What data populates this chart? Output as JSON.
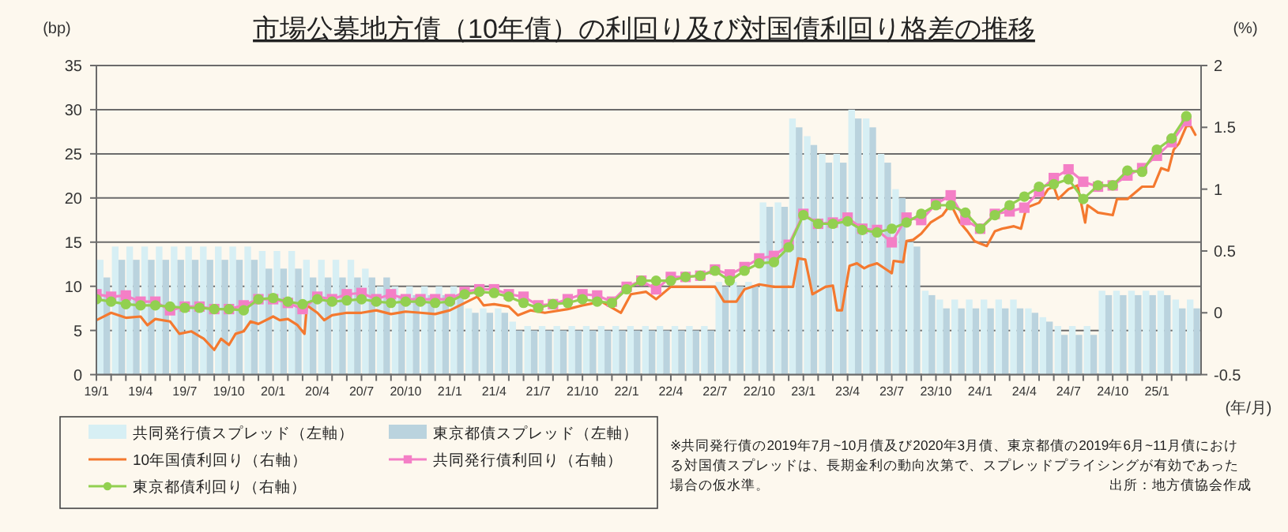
{
  "chart_data": {
    "type": "bar",
    "title": "市場公募地方債（10年債）の利回り及び対国債利回り格差の推移",
    "ylabel": "(bp)",
    "y2label": "(%)",
    "xlabel": "(年/月)",
    "annotations": [
      "※共同発行債の2019年7月~10月債及び2020年3月債、東京都債の2019年6月~11月債における対国債スプレッドは、長期金利の動向次第で、スプレッドプライシングが有効であった場合の仮水準。",
      "出所：地方債協会作成"
    ],
    "x": [
      "2019-01",
      "2019-02",
      "2019-03",
      "2019-04",
      "2019-05",
      "2019-06",
      "2019-07",
      "2019-08",
      "2019-09",
      "2019-10",
      "2019-11",
      "2019-12",
      "2020-01",
      "2020-02",
      "2020-03",
      "2020-04",
      "2020-05",
      "2020-06",
      "2020-07",
      "2020-08",
      "2020-09",
      "2020-10",
      "2020-11",
      "2020-12",
      "2021-01",
      "2021-02",
      "2021-03",
      "2021-04",
      "2021-05",
      "2021-06",
      "2021-07",
      "2021-08",
      "2021-09",
      "2021-10",
      "2021-11",
      "2021-12",
      "2022-01",
      "2022-02",
      "2022-03",
      "2022-04",
      "2022-05",
      "2022-06",
      "2022-07",
      "2022-08",
      "2022-09",
      "2022-10",
      "2022-11",
      "2022-12",
      "2023-01",
      "2023-02",
      "2023-03",
      "2023-04",
      "2023-05",
      "2023-06",
      "2023-07",
      "2023-08",
      "2023-09",
      "2023-10",
      "2023-11",
      "2023-12",
      "2024-01",
      "2024-02",
      "2024-03",
      "2024-04",
      "2024-05",
      "2024-06",
      "2024-07",
      "2024-08",
      "2024-09",
      "2024-10",
      "2024-11",
      "2024-12",
      "2025-01",
      "2025-02",
      "2025-03"
    ],
    "xlim": [
      "2019-01",
      "2025-04"
    ],
    "xticks": [
      {
        "value": "2019-01",
        "label": "19/1"
      },
      {
        "value": "2019-02",
        "label": null
      },
      {
        "value": "2019-03",
        "label": null
      },
      {
        "value": "2019-04",
        "label": "19/4"
      },
      {
        "value": "2019-05",
        "label": null
      },
      {
        "value": "2019-06",
        "label": null
      },
      {
        "value": "2019-07",
        "label": "19/7"
      },
      {
        "value": "2019-08",
        "label": null
      },
      {
        "value": "2019-09",
        "label": null
      },
      {
        "value": "2019-10",
        "label": "19/10"
      },
      {
        "value": "2019-11",
        "label": null
      },
      {
        "value": "2019-12",
        "label": null
      },
      {
        "value": "2020-01",
        "label": "20/1"
      },
      {
        "value": "2020-02",
        "label": null
      },
      {
        "value": "2020-03",
        "label": null
      },
      {
        "value": "2020-04",
        "label": "20/4"
      },
      {
        "value": "2020-05",
        "label": null
      },
      {
        "value": "2020-06",
        "label": null
      },
      {
        "value": "2020-07",
        "label": "20/7"
      },
      {
        "value": "2020-08",
        "label": null
      },
      {
        "value": "2020-09",
        "label": null
      },
      {
        "value": "2020-10",
        "label": "20/10"
      },
      {
        "value": "2020-11",
        "label": null
      },
      {
        "value": "2020-12",
        "label": null
      },
      {
        "value": "2021-01",
        "label": "21/1"
      },
      {
        "value": "2021-02",
        "label": null
      },
      {
        "value": "2021-03",
        "label": null
      },
      {
        "value": "2021-04",
        "label": "21/4"
      },
      {
        "value": "2021-05",
        "label": null
      },
      {
        "value": "2021-06",
        "label": null
      },
      {
        "value": "2021-07",
        "label": "21/7"
      },
      {
        "value": "2021-08",
        "label": null
      },
      {
        "value": "2021-09",
        "label": null
      },
      {
        "value": "2021-10",
        "label": "21/10"
      },
      {
        "value": "2021-11",
        "label": null
      },
      {
        "value": "2021-12",
        "label": null
      },
      {
        "value": "2022-01",
        "label": "22/1"
      },
      {
        "value": "2022-02",
        "label": null
      },
      {
        "value": "2022-03",
        "label": null
      },
      {
        "value": "2022-04",
        "label": "22/4"
      },
      {
        "value": "2022-05",
        "label": null
      },
      {
        "value": "2022-06",
        "label": null
      },
      {
        "value": "2022-07",
        "label": "22/7"
      },
      {
        "value": "2022-08",
        "label": null
      },
      {
        "value": "2022-09",
        "label": null
      },
      {
        "value": "2022-10",
        "label": "22/10"
      },
      {
        "value": "2022-11",
        "label": null
      },
      {
        "value": "2022-12",
        "label": null
      },
      {
        "value": "2023-01",
        "label": "23/1"
      },
      {
        "value": "2023-02",
        "label": null
      },
      {
        "value": "2023-03",
        "label": null
      },
      {
        "value": "2023-04",
        "label": "23/4"
      },
      {
        "value": "2023-05",
        "label": null
      },
      {
        "value": "2023-06",
        "label": null
      },
      {
        "value": "2023-07",
        "label": "23/7"
      },
      {
        "value": "2023-08",
        "label": null
      },
      {
        "value": "2023-09",
        "label": null
      },
      {
        "value": "2023-10",
        "label": "23/10"
      },
      {
        "value": "2023-11",
        "label": null
      },
      {
        "value": "2023-12",
        "label": null
      },
      {
        "value": "2024-01",
        "label": "24/1"
      },
      {
        "value": "2024-02",
        "label": null
      },
      {
        "value": "2024-03",
        "label": null
      },
      {
        "value": "2024-04",
        "label": "24/4"
      },
      {
        "value": "2024-05",
        "label": null
      },
      {
        "value": "2024-06",
        "label": null
      },
      {
        "value": "2024-07",
        "label": "24/7"
      },
      {
        "value": "2024-08",
        "label": null
      },
      {
        "value": "2024-09",
        "label": null
      },
      {
        "value": "2024-10",
        "label": "24/10"
      },
      {
        "value": "2024-11",
        "label": null
      },
      {
        "value": "2024-12",
        "label": null
      },
      {
        "value": "2025-01",
        "label": "25/1"
      },
      {
        "value": "2025-02",
        "label": null
      },
      {
        "value": "2025-03",
        "label": null
      }
    ],
    "ylim": [
      0,
      35
    ],
    "yticks": [
      0,
      5,
      10,
      15,
      20,
      25,
      30,
      35
    ],
    "y2lim": [
      -0.5,
      2
    ],
    "y2ticks": [
      -0.5,
      0,
      0.5,
      1,
      1.5,
      2
    ],
    "grid": "y",
    "legend": "bottom",
    "series": [
      {
        "name": "共同発行債スプレッド（左軸）",
        "color": "#d7eff4",
        "x": [
          "2019-01-16",
          "2019-02-15",
          "2019-03-16",
          "2019-04-16",
          "2019-05-16",
          "2019-06-16",
          "2019-07-16",
          "2019-08-16",
          "2019-09-16",
          "2019-10-16",
          "2019-11-16",
          "2019-12-16",
          "2020-01-16",
          "2020-02-15",
          "2020-03-16",
          "2020-04-16",
          "2020-05-16",
          "2020-06-16",
          "2020-07-16",
          "2020-08-16",
          "2020-09-16",
          "2020-10-16",
          "2020-11-16",
          "2020-12-16",
          "2021-01-16",
          "2021-02-15",
          "2021-03-16",
          "2021-04-16",
          "2021-05-16",
          "2021-06-16",
          "2021-07-16",
          "2021-08-16",
          "2021-09-16",
          "2021-10-16",
          "2021-11-16",
          "2021-12-16",
          "2022-01-16",
          "2022-02-15",
          "2022-03-16",
          "2022-04-16",
          "2022-05-16",
          "2022-06-16",
          "2022-07-16",
          "2022-08-16",
          "2022-09-16",
          "2022-10-16",
          "2022-11-16",
          "2022-12-16",
          "2023-01-16",
          "2023-02-15",
          "2023-03-16",
          "2023-04-16",
          "2023-05-16",
          "2023-06-16",
          "2023-07-16",
          "2023-08-16",
          "2023-09-16",
          "2023-10-16",
          "2023-11-16",
          "2023-12-16",
          "2024-01-16",
          "2024-02-15",
          "2024-03-16",
          "2024-04-16",
          "2024-05-16",
          "2024-06-16",
          "2024-07-16",
          "2024-08-16",
          "2024-09-16",
          "2024-10-16",
          "2024-11-16",
          "2024-12-16",
          "2025-01-16",
          "2025-02-15",
          "2025-03-16"
        ],
        "values": [
          13,
          14.5,
          14.5,
          14.5,
          14.5,
          14.5,
          14.5,
          14.5,
          14.5,
          14.5,
          14.5,
          14,
          14,
          14,
          13,
          13,
          13,
          13,
          12,
          10,
          10,
          10,
          10,
          10,
          10,
          7.5,
          7.5,
          7.5,
          6,
          5.5,
          5.5,
          5.5,
          5.5,
          5.5,
          5.5,
          5.5,
          5.5,
          5.5,
          5.5,
          5.5,
          5.5,
          5.5,
          10.5,
          10.5,
          10.5,
          19.5,
          19.5,
          29,
          27,
          25,
          25,
          30,
          29,
          25,
          21,
          15,
          9.5,
          8.5,
          8.5,
          8.5,
          8.5,
          8.5,
          8.5,
          7.5,
          6.5,
          5.5,
          5.5,
          5.5,
          9.5,
          9.5,
          9.5,
          9.5,
          9.5,
          8.5,
          8.5
        ]
      },
      {
        "name": "東京都債スプレッド（左軸）",
        "color": "#bad3de",
        "x": [
          "2019-01-16",
          "2019-02-15",
          "2019-03-16",
          "2019-04-16",
          "2019-05-16",
          "2019-06-16",
          "2019-07-16",
          "2019-08-16",
          "2019-09-16",
          "2019-10-16",
          "2019-11-16",
          "2019-12-16",
          "2020-01-16",
          "2020-02-15",
          "2020-03-16",
          "2020-04-16",
          "2020-05-16",
          "2020-06-16",
          "2020-07-16",
          "2020-08-16",
          "2020-09-16",
          "2020-10-16",
          "2020-11-16",
          "2020-12-16",
          "2021-01-16",
          "2021-02-15",
          "2021-03-16",
          "2021-04-16",
          "2021-05-16",
          "2021-06-16",
          "2021-07-16",
          "2021-08-16",
          "2021-09-16",
          "2021-10-16",
          "2021-11-16",
          "2021-12-16",
          "2022-01-16",
          "2022-02-15",
          "2022-03-16",
          "2022-04-16",
          "2022-05-16",
          "2022-06-16",
          "2022-07-16",
          "2022-08-16",
          "2022-09-16",
          "2022-10-16",
          "2022-11-16",
          "2022-12-16",
          "2023-01-16",
          "2023-02-15",
          "2023-03-16",
          "2023-04-16",
          "2023-05-16",
          "2023-06-16",
          "2023-07-16",
          "2023-08-16",
          "2023-09-16",
          "2023-10-16",
          "2023-11-16",
          "2023-12-16",
          "2024-01-16",
          "2024-02-15",
          "2024-03-16",
          "2024-04-16",
          "2024-05-16",
          "2024-06-16",
          "2024-07-16",
          "2024-08-16",
          "2024-09-16",
          "2024-10-16",
          "2024-11-16",
          "2024-12-16",
          "2025-01-16",
          "2025-02-15",
          "2025-03-16"
        ],
        "values": [
          11,
          13,
          13,
          13,
          13,
          13,
          13,
          13,
          13,
          13,
          13,
          12,
          12,
          12,
          11,
          11,
          11,
          11,
          11,
          11,
          9,
          9,
          9,
          9,
          9,
          7,
          7,
          7,
          5,
          5,
          5,
          5,
          5,
          5,
          5,
          5,
          5,
          5,
          5,
          5,
          5,
          5,
          10,
          10,
          10,
          19,
          19,
          28,
          26,
          24,
          24,
          29,
          28,
          24,
          20,
          14.5,
          9,
          7.5,
          7.5,
          7.5,
          7.5,
          7.5,
          7.5,
          7,
          6,
          4.5,
          4.5,
          4.5,
          9,
          9,
          9,
          9,
          9,
          7.5,
          7.5
        ]
      },
      {
        "name": "10年国債利回り（右軸）",
        "type": "line",
        "axis": "y2",
        "color": "#f4792f",
        "marker": "none",
        "line_style": "solid",
        "x": [
          "2019-01-01",
          "2019-02-01",
          "2019-03-01",
          "2019-04-01",
          "2019-04-15",
          "2019-05-01",
          "2019-06-01",
          "2019-06-20",
          "2019-07-15",
          "2019-08-10",
          "2019-09-01",
          "2019-09-15",
          "2019-10-01",
          "2019-10-15",
          "2019-11-01",
          "2019-11-15",
          "2019-12-01",
          "2020-01-01",
          "2020-01-15",
          "2020-02-01",
          "2020-02-20",
          "2020-03-05",
          "2020-03-10",
          "2020-04-01",
          "2020-04-15",
          "2020-05-01",
          "2020-06-01",
          "2020-07-01",
          "2020-08-01",
          "2020-09-01",
          "2020-10-01",
          "2020-11-01",
          "2020-12-01",
          "2021-01-01",
          "2021-02-25",
          "2021-03-10",
          "2021-04-01",
          "2021-05-01",
          "2021-05-20",
          "2021-06-15",
          "2021-07-15",
          "2021-09-01",
          "2021-10-01",
          "2021-11-10",
          "2021-12-20",
          "2022-01-10",
          "2022-02-10",
          "2022-03-01",
          "2022-04-01",
          "2022-05-10",
          "2022-07-01",
          "2022-07-20",
          "2022-08-15",
          "2022-09-01",
          "2022-10-01",
          "2022-11-01",
          "2022-12-10",
          "2022-12-21",
          "2023-01-05",
          "2023-01-20",
          "2023-02-15",
          "2023-03-01",
          "2023-03-10",
          "2023-03-20",
          "2023-04-05",
          "2023-04-20",
          "2023-05-05",
          "2023-05-15",
          "2023-06-01",
          "2023-06-20",
          "2023-07-01",
          "2023-07-05",
          "2023-07-25",
          "2023-08-01",
          "2023-08-15",
          "2023-09-01",
          "2023-09-20",
          "2023-10-15",
          "2023-11-01",
          "2023-11-20",
          "2023-12-05",
          "2023-12-20",
          "2024-01-01",
          "2024-01-15",
          "2024-02-01",
          "2024-02-15",
          "2024-03-10",
          "2024-03-25",
          "2024-04-05",
          "2024-05-01",
          "2024-05-20",
          "2024-06-01",
          "2024-06-10",
          "2024-07-01",
          "2024-07-20",
          "2024-08-05",
          "2024-08-10",
          "2024-09-01",
          "2024-10-01",
          "2024-10-10",
          "2024-11-01",
          "2024-12-01",
          "2024-12-25",
          "2025-01-10",
          "2025-01-25",
          "2025-02-05",
          "2025-02-15",
          "2025-03-01",
          "2025-03-10",
          "2025-03-20"
        ],
        "values": [
          -0.06,
          0.0,
          -0.04,
          -0.03,
          -0.1,
          -0.05,
          -0.07,
          -0.17,
          -0.15,
          -0.21,
          -0.3,
          -0.21,
          -0.26,
          -0.17,
          -0.15,
          -0.07,
          -0.09,
          -0.03,
          -0.06,
          -0.05,
          -0.1,
          -0.17,
          0.06,
          0.0,
          -0.06,
          -0.02,
          0.0,
          0.0,
          0.02,
          -0.01,
          0.01,
          0.0,
          -0.01,
          0.02,
          0.13,
          0.06,
          0.07,
          0.05,
          -0.02,
          0.02,
          0.0,
          0.03,
          0.06,
          0.09,
          0.0,
          0.15,
          0.17,
          0.11,
          0.21,
          0.21,
          0.21,
          0.09,
          0.09,
          0.19,
          0.23,
          0.21,
          0.21,
          0.44,
          0.43,
          0.15,
          0.21,
          0.22,
          0.02,
          0.02,
          0.38,
          0.4,
          0.36,
          0.38,
          0.4,
          0.35,
          0.32,
          0.42,
          0.41,
          0.58,
          0.59,
          0.64,
          0.73,
          0.79,
          0.88,
          0.73,
          0.66,
          0.58,
          0.56,
          0.54,
          0.66,
          0.68,
          0.7,
          0.68,
          0.85,
          0.89,
          1.0,
          1.02,
          0.92,
          1.0,
          1.03,
          0.73,
          0.87,
          0.81,
          0.79,
          0.92,
          0.92,
          1.02,
          1.02,
          1.17,
          1.15,
          1.32,
          1.37,
          1.51,
          1.51,
          1.44
        ]
      },
      {
        "name": "共同発行債利回り（右軸）",
        "type": "line",
        "axis": "y2",
        "color": "#f47fc6",
        "marker": "square",
        "line_style": "solid",
        "values": [
          0.15,
          0.13,
          0.14,
          0.09,
          0.09,
          0.02,
          0.05,
          0.05,
          0.03,
          0.03,
          0.06,
          0.11,
          0.11,
          0.08,
          0.03,
          0.13,
          0.11,
          0.15,
          0.16,
          0.11,
          0.15,
          0.11,
          0.11,
          0.11,
          0.11,
          0.17,
          0.19,
          0.19,
          0.15,
          0.13,
          0.06,
          0.07,
          0.11,
          0.15,
          0.14,
          0.09,
          0.21,
          0.26,
          0.19,
          0.29,
          0.29,
          0.3,
          0.35,
          0.31,
          0.37,
          0.44,
          0.46,
          0.55,
          0.8,
          0.72,
          0.73,
          0.77,
          0.68,
          0.67,
          0.57,
          0.77,
          0.75,
          0.88,
          0.95,
          0.75,
          0.68,
          0.8,
          0.82,
          0.85,
          0.98,
          1.09,
          1.16,
          1.06,
          1.02,
          1.03,
          1.11,
          1.17,
          1.27,
          1.38,
          1.55
        ]
      },
      {
        "name": "東京都債利回り（右軸）",
        "type": "line",
        "axis": "y2",
        "color": "#92d050",
        "marker": "circle",
        "line_style": "solid",
        "values": [
          0.11,
          0.09,
          0.07,
          0.06,
          0.06,
          0.05,
          0.04,
          0.04,
          0.03,
          0.03,
          0.02,
          0.11,
          0.12,
          0.09,
          0.07,
          0.11,
          0.09,
          0.1,
          0.11,
          0.09,
          0.08,
          0.09,
          0.09,
          0.08,
          0.09,
          0.15,
          0.17,
          0.16,
          0.13,
          0.08,
          0.04,
          0.07,
          0.08,
          0.11,
          0.09,
          0.08,
          0.19,
          0.26,
          0.26,
          0.26,
          0.29,
          0.3,
          0.34,
          0.26,
          0.34,
          0.4,
          0.41,
          0.53,
          0.79,
          0.72,
          0.72,
          0.74,
          0.67,
          0.65,
          0.68,
          0.73,
          0.8,
          0.87,
          0.87,
          0.81,
          0.68,
          0.79,
          0.87,
          0.94,
          1.02,
          1.04,
          1.08,
          0.92,
          1.03,
          1.03,
          1.15,
          1.14,
          1.32,
          1.41,
          1.59
        ]
      }
    ]
  }
}
